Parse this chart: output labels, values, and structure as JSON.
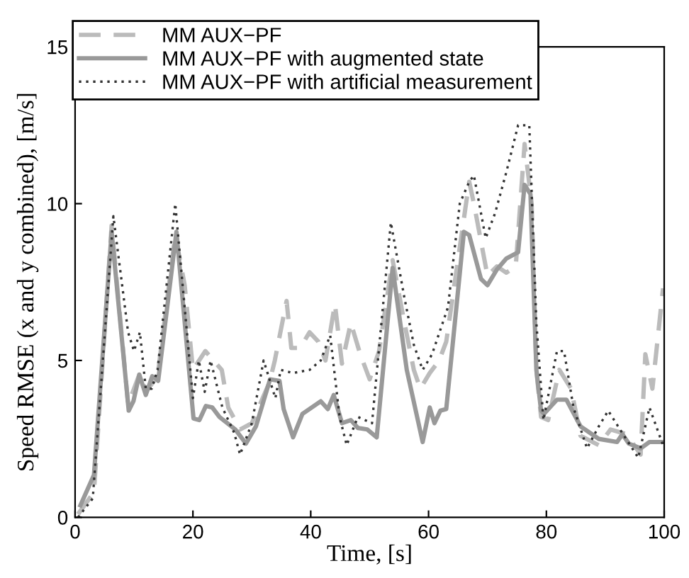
{
  "chart_data": {
    "type": "line",
    "xlabel": "Time, [s]",
    "ylabel": "Speed RMSE (x and y combined), [m/s]",
    "xlim": [
      0,
      100
    ],
    "ylim": [
      0,
      15
    ],
    "xticks": [
      0,
      20,
      40,
      60,
      80,
      100
    ],
    "yticks": [
      0,
      5,
      10,
      15
    ],
    "grid": false,
    "legend": "top left",
    "marker": "none",
    "series": [
      {
        "name": "MM AUX−PF",
        "color": "#bbbbbb",
        "line_style": "dashed",
        "x": [
          0.5,
          3.2,
          6.2,
          9,
          11,
          12,
          14,
          17,
          18.6,
          20,
          22.1,
          24.9,
          26,
          28,
          30,
          33,
          33.9,
          35.9,
          36.7,
          38.2,
          39.8,
          41.3,
          42.5,
          44.1,
          45.3,
          46.8,
          48.4,
          50,
          51.6,
          53.9,
          55.9,
          57.5,
          58.6,
          60.2,
          61.8,
          63,
          66.9,
          67.7,
          68.9,
          70,
          71.6,
          73.2,
          74.8,
          76.3,
          77.5,
          78.3,
          79.1,
          80.3,
          82.2,
          84.2,
          85.8,
          88.9,
          90.9,
          93.6,
          96,
          96.8,
          98,
          99.8
        ],
        "values": [
          0.1,
          0.8,
          9.3,
          3.6,
          4.6,
          4.0,
          4.5,
          9.0,
          7.4,
          4.7,
          5.3,
          4.7,
          3.5,
          2.8,
          3.0,
          4.3,
          5.0,
          6.9,
          5.4,
          5.4,
          5.9,
          5.6,
          5.0,
          6.8,
          4.9,
          6.2,
          5.2,
          4.4,
          5.3,
          8.2,
          6.2,
          4.7,
          4.1,
          4.6,
          5.0,
          5.6,
          10.7,
          10.0,
          8.8,
          7.7,
          8.0,
          7.8,
          8.0,
          11.9,
          10.0,
          4.7,
          3.2,
          3.1,
          4.7,
          4.1,
          2.6,
          2.3,
          2.8,
          2.65,
          2.0,
          5.2,
          4.1,
          7.3
        ]
      },
      {
        "name": "MM AUX−PF with augmented state",
        "color": "#999999",
        "line_style": "solid",
        "x": [
          0.9,
          3.2,
          6.2,
          9.1,
          9.9,
          10.9,
          12,
          13.1,
          14.1,
          17.2,
          20.1,
          21.1,
          22.2,
          23.3,
          24.5,
          27.2,
          29,
          30.7,
          33.1,
          34.7,
          35.4,
          37,
          38.6,
          41.7,
          42.9,
          43.9,
          45.3,
          46.8,
          48,
          49.6,
          51.2,
          53.9,
          56.3,
          59,
          60.2,
          61,
          62,
          63,
          66,
          66.9,
          68.9,
          70,
          71.6,
          73.2,
          75.2,
          76.3,
          77.3,
          78.3,
          79.1,
          79.6,
          81.8,
          83.4,
          85.8,
          88.9,
          92,
          92.9,
          94,
          96,
          97.5,
          99.5
        ],
        "values": [
          0.38,
          1.35,
          9.1,
          3.4,
          3.7,
          4.55,
          3.9,
          4.5,
          4.35,
          9.1,
          3.15,
          3.1,
          3.55,
          3.5,
          3.2,
          2.8,
          2.35,
          2.9,
          4.4,
          4.35,
          3.45,
          2.55,
          3.3,
          3.7,
          3.45,
          3.9,
          3.0,
          3.1,
          2.85,
          2.8,
          2.55,
          7.95,
          4.7,
          2.4,
          3.5,
          3.0,
          3.4,
          3.45,
          9.1,
          9.0,
          7.6,
          7.4,
          7.9,
          8.25,
          8.45,
          10.6,
          10.3,
          4.7,
          3.4,
          3.3,
          3.75,
          3.75,
          2.9,
          2.5,
          2.4,
          2.65,
          2.35,
          2.2,
          2.4,
          2.4
        ]
      },
      {
        "name": "MM AUX−PF with artificial measurement",
        "color": "#333333",
        "line_style": "dotted",
        "x": [
          0.5,
          3,
          6.5,
          9,
          10,
          11,
          12,
          13,
          14,
          17,
          20,
          21,
          22,
          23,
          25,
          27,
          28,
          30,
          32,
          34,
          34.9,
          37,
          39.8,
          41.7,
          43.3,
          44.9,
          46.1,
          48,
          50.4,
          53.6,
          55.9,
          57.5,
          59,
          60.6,
          63.3,
          65.3,
          66.9,
          67.7,
          69.7,
          71.3,
          73.2,
          75.2,
          77.1,
          78.3,
          79.5,
          81.8,
          83,
          84.6,
          86.9,
          88.9,
          90.5,
          92.5,
          95.6,
          97.5,
          99.8
        ],
        "values": [
          0.0,
          0.6,
          9.6,
          5.9,
          5.3,
          5.9,
          4.1,
          4.1,
          4.7,
          10.0,
          3.8,
          5.0,
          4.0,
          5.0,
          3.5,
          2.7,
          2.0,
          3.0,
          5.0,
          3.8,
          4.7,
          4.6,
          4.7,
          5.0,
          5.8,
          3.2,
          2.3,
          3.2,
          3.0,
          9.4,
          7.0,
          5.5,
          4.7,
          5.2,
          6.7,
          10.0,
          10.7,
          10.9,
          8.9,
          9.7,
          11.0,
          12.5,
          12.5,
          6.2,
          3.1,
          5.3,
          5.3,
          3.5,
          2.2,
          2.9,
          3.4,
          2.8,
          1.9,
          3.5,
          2.3
        ]
      }
    ]
  }
}
